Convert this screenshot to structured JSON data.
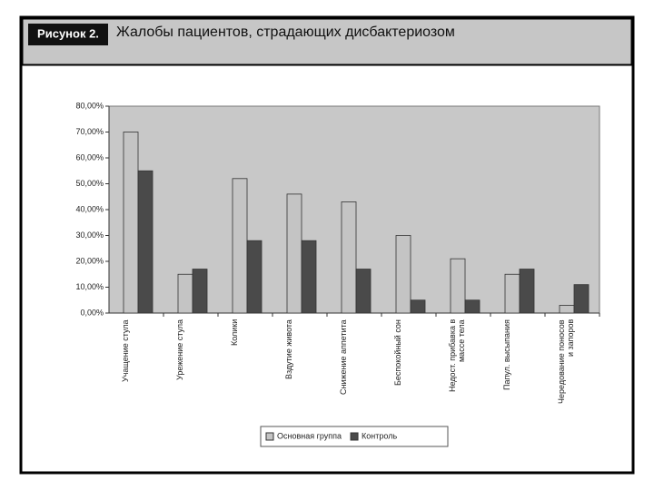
{
  "figure_label": "Рисунок 2.",
  "chart_data": {
    "type": "bar",
    "title": "Жалобы пациентов, страдающих дисбактериозом",
    "categories": [
      "Учащение стула",
      "Урежение стула",
      "Колики",
      "Вздутие живота",
      "Снижение аппетита",
      "Беспокойный сон",
      "Недост. прибавка в массе тела",
      "Папул. высыпания",
      "Чередование поносов и запоров"
    ],
    "series": [
      {
        "name": "Основная группа",
        "color": "#c4c4c4",
        "values": [
          70,
          15,
          52,
          46,
          43,
          30,
          21,
          15,
          3
        ]
      },
      {
        "name": "Контроль",
        "color": "#4a4a4a",
        "values": [
          55,
          17,
          28,
          28,
          17,
          5,
          5,
          17,
          11
        ]
      }
    ],
    "ylim": [
      0,
      80
    ],
    "yticks": [
      {
        "value": 0,
        "label": "0,00%"
      },
      {
        "value": 10,
        "label": "10,00%"
      },
      {
        "value": 20,
        "label": "20,00%"
      },
      {
        "value": 30,
        "label": "30,00%"
      },
      {
        "value": 40,
        "label": "40,00%"
      },
      {
        "value": 50,
        "label": "50,00%"
      },
      {
        "value": 60,
        "label": "60,00%"
      },
      {
        "value": 70,
        "label": "70,00%"
      },
      {
        "value": 80,
        "label": "80,00%"
      }
    ],
    "legend": "bottom"
  }
}
